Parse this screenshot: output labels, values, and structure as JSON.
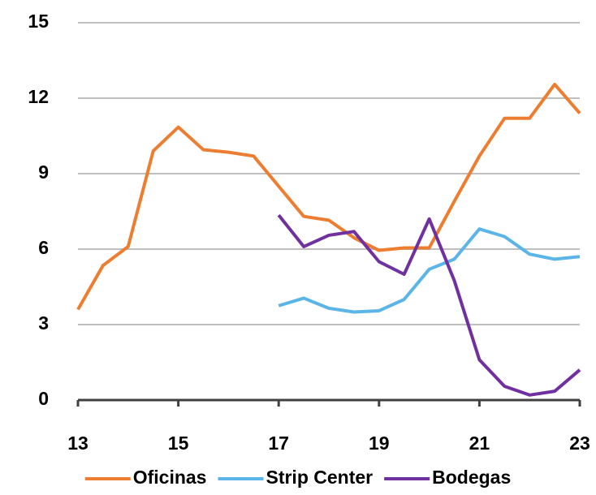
{
  "chart_data": {
    "type": "line",
    "x": [
      13,
      13.5,
      14,
      14.5,
      15,
      15.5,
      16,
      16.5,
      17,
      17.5,
      18,
      18.5,
      19,
      19.5,
      20,
      20.5,
      21,
      21.5,
      22,
      22.5,
      23
    ],
    "series": [
      {
        "name": "Oficinas",
        "color": "#ED7D31",
        "values": [
          3.6,
          5.35,
          6.1,
          9.9,
          10.85,
          9.95,
          9.85,
          9.7,
          8.5,
          7.3,
          7.15,
          6.45,
          5.95,
          6.05,
          6.05,
          7.9,
          9.7,
          11.2,
          11.2,
          12.55,
          11.4
        ]
      },
      {
        "name": "Strip Center",
        "color": "#5BB5E8",
        "values": [
          null,
          null,
          null,
          null,
          null,
          null,
          null,
          null,
          3.75,
          4.05,
          3.65,
          3.5,
          3.55,
          4.0,
          5.2,
          5.6,
          6.8,
          6.5,
          5.8,
          5.6,
          5.7
        ]
      },
      {
        "name": "Bodegas",
        "color": "#7030A0",
        "values": [
          null,
          null,
          null,
          null,
          null,
          null,
          null,
          null,
          7.35,
          6.1,
          6.55,
          6.7,
          5.5,
          5.0,
          7.2,
          4.75,
          1.6,
          0.55,
          0.2,
          0.35,
          1.2
        ]
      }
    ],
    "xlim": [
      13,
      23
    ],
    "xticks": [
      13,
      15,
      17,
      19,
      21,
      23
    ],
    "ylim": [
      0,
      15
    ],
    "yticks": [
      0,
      3,
      6,
      9,
      12,
      15
    ],
    "grid": true,
    "legend": "bottom"
  }
}
